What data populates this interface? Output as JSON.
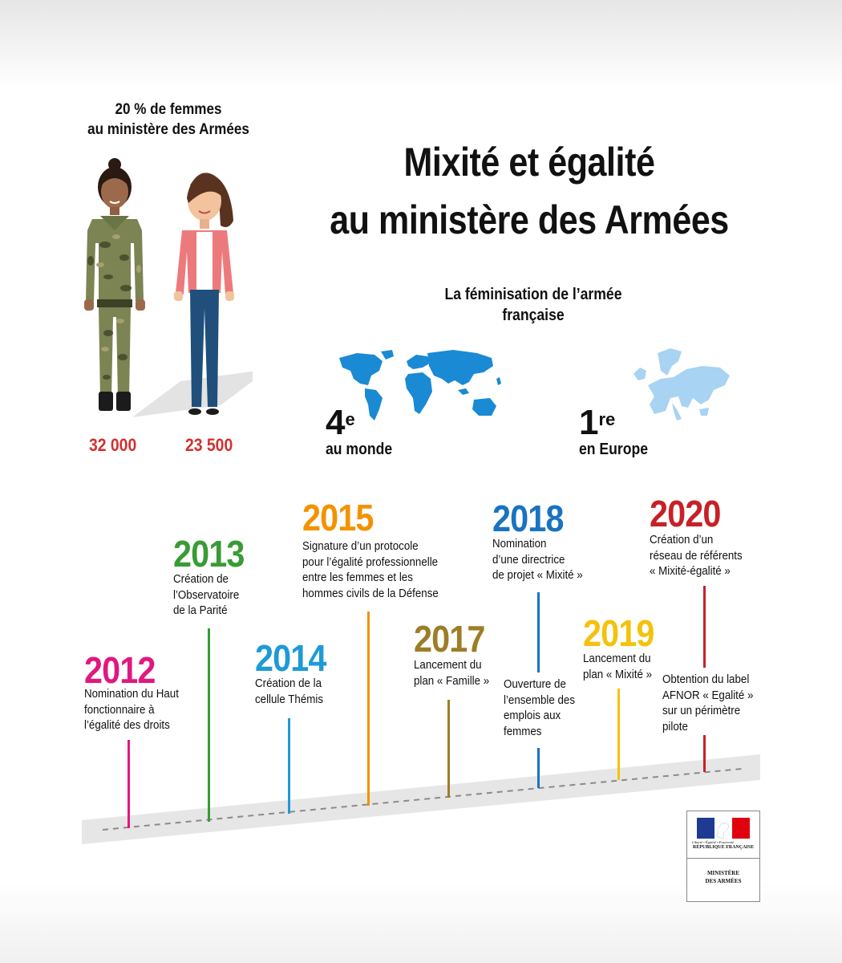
{
  "header": {
    "women_stat_line1": "20 % de femmes",
    "women_stat_line2": "au ministère des Armées",
    "title_line1": "Mixité et égalité",
    "title_line2": "au ministère des Armées"
  },
  "people": {
    "military_count": "32 000",
    "civilian_count": "23 500"
  },
  "feminisation": {
    "title_line1": "La féminisation de l’armée",
    "title_line2": "française",
    "world": {
      "rank": "4",
      "suffix": "e",
      "label": "au monde"
    },
    "europe": {
      "rank": "1",
      "suffix": "re",
      "label": "en Europe"
    }
  },
  "timeline": {
    "events": [
      {
        "year": "2012",
        "text": "Nomination du Haut\nfonctionnaire à\nl’égalité des droits",
        "color": "#e0187f"
      },
      {
        "year": "2013",
        "text": "Création de\nl’Observatoire\nde la Parité",
        "color": "#3a9b35"
      },
      {
        "year": "2014",
        "text": "Création de la\ncellule Thémis",
        "color": "#1e9ad6"
      },
      {
        "year": "2015",
        "text": "Signature d’un protocole\npour l’égalité professionnelle\nentre les femmes et les\nhommes civils de la Défense",
        "color": "#f39200"
      },
      {
        "year": "2017",
        "text": "Lancement du\nplan « Famille »",
        "color": "#9d7d27"
      },
      {
        "year": "2018",
        "text": "Nomination\nd’une directrice\nde projet « Mixité »",
        "color": "#1a73c0"
      },
      {
        "year": "2019",
        "text": "Lancement du\nplan « Mixité »",
        "color": "#f4c20d"
      },
      {
        "year": "2020",
        "text": "Création d’un\nréseau de référents\n« Mixité-égalité »",
        "color": "#c62127"
      }
    ],
    "extra_2018": "Ouverture de\nl’ensemble des\nemplois aux\nfemmes",
    "extra_2020": "Obtention du label\nAFNOR « Egalité »\nsur un périmètre\npilote"
  },
  "logo": {
    "motto": "Liberté • Égalité • Fraternité",
    "republic": "RÉPUBLIQUE FRANÇAISE",
    "ministry_line1": "MINISTÈRE",
    "ministry_line2": "DES ARMÉES",
    "flag_colors": [
      "#1f3a93",
      "#ffffff",
      "#e1000f"
    ]
  }
}
